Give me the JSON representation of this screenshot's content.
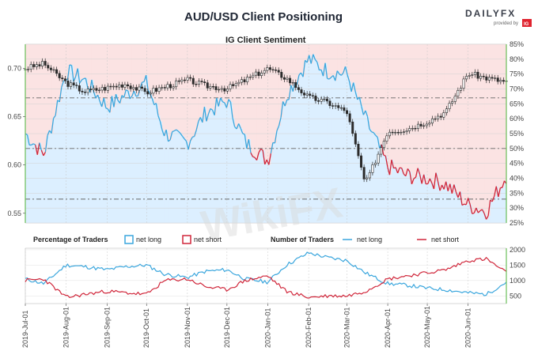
{
  "header": {
    "title": "AUD/USD Client Positioning",
    "brand": "DAILYFX",
    "brand_sub": "provided by",
    "brand_badge": "IG",
    "watermark": "WikiFX"
  },
  "colors": {
    "net_long": "#3aa6dd",
    "net_short": "#d0263a",
    "long_fill": "#dcefff",
    "short_fill": "#fbe3e3",
    "price": "#2b2b2b",
    "up_candle": "#ffffff",
    "down_candle": "#2b2b2b"
  },
  "legend": {
    "pct_label": "Percentage of Traders",
    "num_label": "Number of Traders",
    "net_long": "net long",
    "net_short": "net short"
  },
  "chart_data": [
    {
      "type": "line",
      "title": "IG Client Sentiment",
      "x": [
        "2019-07-01",
        "2019-07-15",
        "2019-08-01",
        "2019-08-15",
        "2019-09-01",
        "2019-09-15",
        "2019-10-01",
        "2019-10-15",
        "2019-11-01",
        "2019-11-15",
        "2019-12-01",
        "2019-12-15",
        "2020-01-01",
        "2020-01-15",
        "2020-02-01",
        "2020-02-15",
        "2020-03-01",
        "2020-03-15",
        "2020-04-01",
        "2020-04-15",
        "2020-05-01",
        "2020-05-15",
        "2020-06-01",
        "2020-06-15",
        "2020-06-30"
      ],
      "x_tick_labels": [
        "2019-Jul-01",
        "2019-Aug-01",
        "2019-Sep-01",
        "2019-Oct-01",
        "2019-Nov-01",
        "2019-Dec-01",
        "2020-Jan-01",
        "2020-Feb-01",
        "2020-Mar-01",
        "2020-Apr-01",
        "2020-May-01",
        "2020-Jun-01"
      ],
      "series": [
        {
          "name": "net long",
          "axis": "right",
          "unit": "%",
          "values": [
            55,
            48,
            76,
            73,
            64,
            68,
            72,
            55,
            52,
            62,
            66,
            52,
            46,
            68,
            80,
            76,
            75,
            60,
            44,
            41,
            40,
            38,
            31,
            29,
            41
          ]
        },
        {
          "name": "AUD/USD",
          "axis": "left",
          "kind": "candlestick-close",
          "values": [
            0.7,
            0.705,
            0.685,
            0.676,
            0.68,
            0.684,
            0.675,
            0.681,
            0.688,
            0.682,
            0.679,
            0.688,
            0.7,
            0.69,
            0.67,
            0.665,
            0.655,
            0.58,
            0.635,
            0.637,
            0.645,
            0.655,
            0.695,
            0.69,
            0.686
          ]
        }
      ],
      "y_left": {
        "ticks": [
          0.55,
          0.6,
          0.65,
          0.7
        ],
        "tick_labels": [
          "0.55",
          "0.60",
          "0.65",
          "0.70"
        ],
        "range": [
          0.54,
          0.725
        ]
      },
      "y_right": {
        "ticks": [
          25,
          30,
          35,
          40,
          45,
          50,
          55,
          60,
          65,
          70,
          75,
          80,
          85
        ],
        "tick_labels": [
          "25%",
          "30%",
          "35%",
          "40%",
          "45%",
          "50%",
          "55%",
          "60%",
          "65%",
          "70%",
          "75%",
          "80%",
          "85%"
        ],
        "range": [
          25,
          85
        ]
      },
      "reference_lines": [
        50,
        33,
        67
      ]
    },
    {
      "type": "line",
      "title": "Number of Traders",
      "x": [
        "2019-07-01",
        "2019-07-15",
        "2019-08-01",
        "2019-08-15",
        "2019-09-01",
        "2019-09-15",
        "2019-10-01",
        "2019-10-15",
        "2019-11-01",
        "2019-11-15",
        "2019-12-01",
        "2019-12-15",
        "2020-01-01",
        "2020-01-15",
        "2020-02-01",
        "2020-02-15",
        "2020-03-01",
        "2020-03-15",
        "2020-04-01",
        "2020-04-15",
        "2020-05-01",
        "2020-05-15",
        "2020-06-01",
        "2020-06-15",
        "2020-06-30"
      ],
      "series": [
        {
          "name": "net long",
          "values": [
            1050,
            900,
            1500,
            1450,
            1350,
            1450,
            1500,
            1200,
            1100,
            1300,
            1350,
            1050,
            950,
            1500,
            1900,
            1750,
            1650,
            1250,
            900,
            850,
            750,
            700,
            600,
            550,
            950
          ]
        },
        {
          "name": "net short",
          "values": [
            1000,
            1050,
            450,
            550,
            650,
            600,
            550,
            1000,
            1050,
            800,
            700,
            1000,
            1150,
            650,
            450,
            500,
            500,
            650,
            1050,
            1150,
            1250,
            1350,
            1650,
            1700,
            1250
          ]
        }
      ],
      "y_right": {
        "ticks": [
          500,
          1000,
          1500,
          2000
        ],
        "tick_labels": [
          "500",
          "1000",
          "1500",
          "2000"
        ],
        "range": [
          250,
          2050
        ]
      }
    }
  ]
}
